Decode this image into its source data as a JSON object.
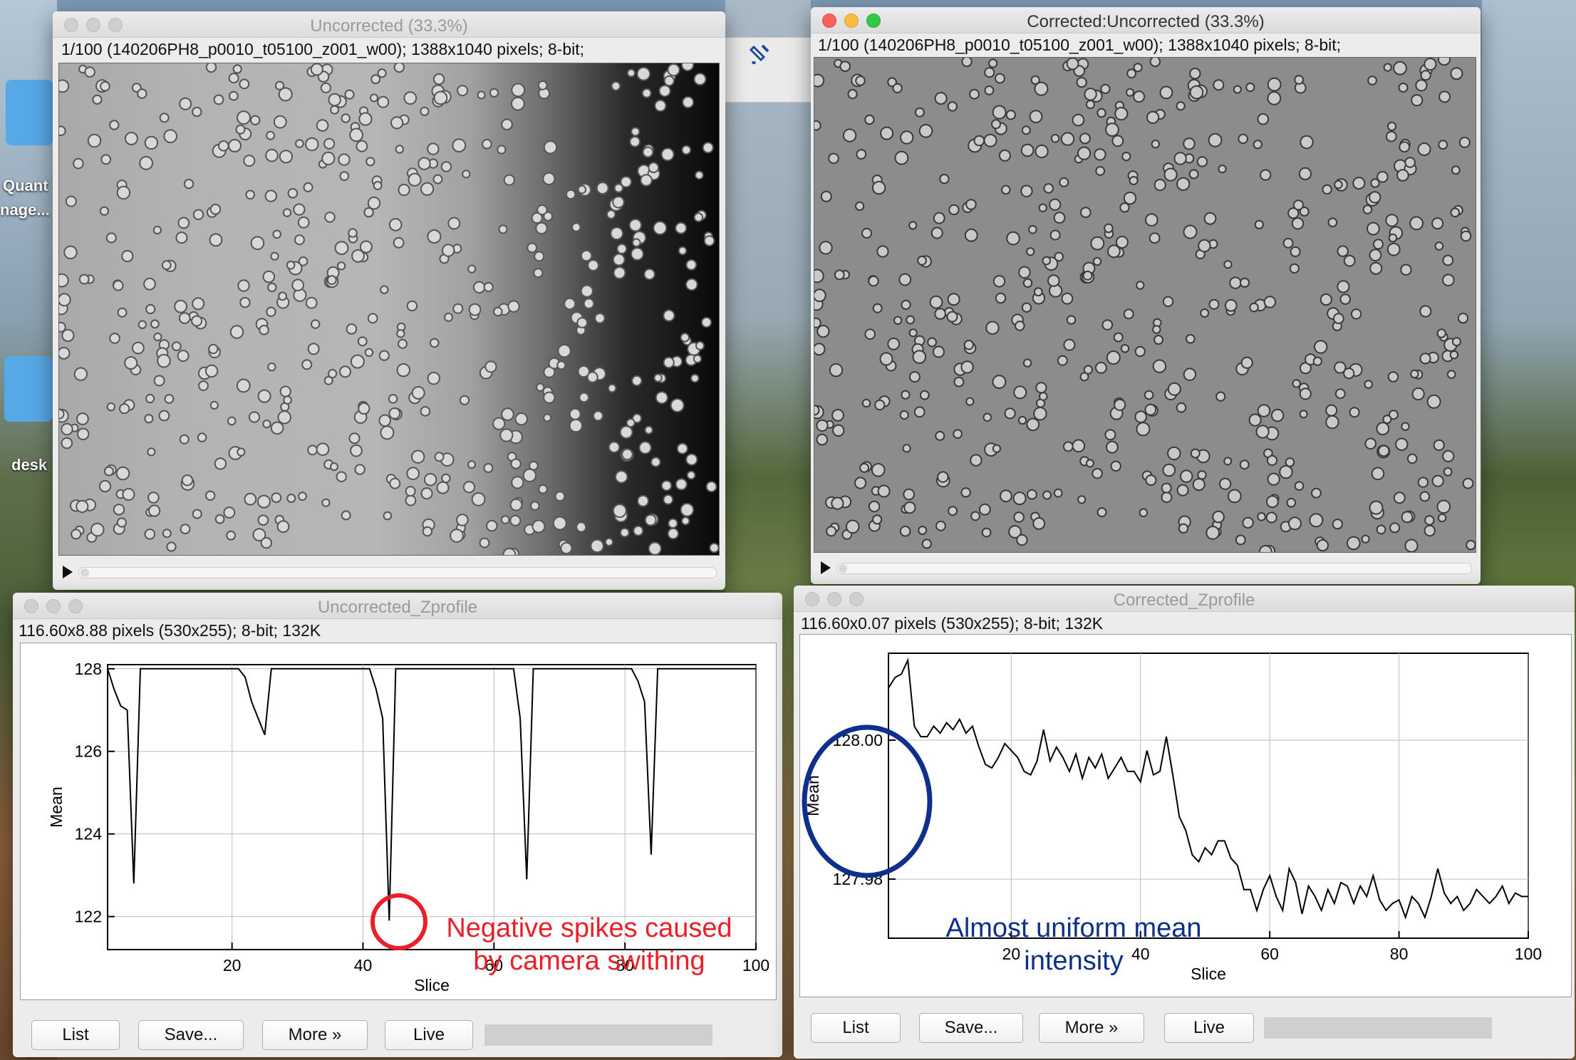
{
  "desktop": {
    "labels": [
      "Quant",
      "nage...",
      "desk"
    ]
  },
  "windows": {
    "uncorrected_image": {
      "title": "Uncorrected (33.3%)",
      "info": "1/100 (140206PH8_p0010_t05100_z001_w00); 1388x1040 pixels; 8-bit;"
    },
    "corrected_image": {
      "title": "Corrected:Uncorrected (33.3%)",
      "info": "1/100 (140206PH8_p0010_t05100_z001_w00); 1388x1040 pixels; 8-bit;"
    },
    "uncorrected_profile": {
      "title": "Uncorrected_Zprofile",
      "info": "116.60x8.88 pixels (530x255); 8-bit; 132K",
      "annotation": [
        "Negative spikes caused",
        "by camera swithing"
      ],
      "buttons": [
        "List",
        "Save...",
        "More »",
        "Live"
      ]
    },
    "corrected_profile": {
      "title": "Corrected_Zprofile",
      "info": "116.60x0.07 pixels (530x255); 8-bit; 132K",
      "annotation": [
        "Almost uniform mean",
        "intensity"
      ],
      "buttons": [
        "List",
        "Save...",
        "More »",
        "Live"
      ]
    }
  },
  "chart_data": [
    {
      "type": "line",
      "xlabel": "Slice",
      "ylabel": "Mean",
      "xlim": [
        1,
        100
      ],
      "ylim": [
        121.2,
        128.1
      ],
      "xticks": [
        20,
        40,
        60,
        80,
        100
      ],
      "yticks": [
        122,
        124,
        126,
        128
      ],
      "ytick_labels": [
        "122",
        "124",
        "126",
        "128"
      ],
      "grid": true,
      "x": [
        1,
        2,
        3,
        4,
        5,
        6,
        7,
        8,
        9,
        10,
        11,
        12,
        13,
        14,
        15,
        16,
        17,
        18,
        19,
        20,
        21,
        22,
        23,
        24,
        25,
        26,
        27,
        28,
        29,
        30,
        31,
        32,
        33,
        34,
        35,
        36,
        37,
        38,
        39,
        40,
        41,
        42,
        43,
        44,
        45,
        46,
        47,
        48,
        49,
        50,
        51,
        52,
        53,
        54,
        55,
        56,
        57,
        58,
        59,
        60,
        61,
        62,
        63,
        64,
        65,
        66,
        67,
        68,
        69,
        70,
        71,
        72,
        73,
        74,
        75,
        76,
        77,
        78,
        79,
        80,
        81,
        82,
        83,
        84,
        85,
        86,
        87,
        88,
        89,
        90,
        91,
        92,
        93,
        94,
        95,
        96,
        97,
        98,
        99,
        100
      ],
      "values": [
        128,
        127.5,
        127.1,
        127,
        122.8,
        128,
        128,
        128,
        128,
        128,
        128,
        128,
        128,
        128,
        128,
        128,
        128,
        128,
        128,
        128,
        128,
        127.8,
        127.2,
        126.8,
        126.4,
        128,
        128,
        128,
        128,
        128,
        128,
        128,
        128,
        128,
        128,
        128,
        128,
        128,
        128,
        128,
        128,
        127.5,
        126.8,
        121.9,
        128,
        128,
        128,
        128,
        128,
        128,
        128,
        128,
        128,
        128,
        128,
        128,
        128,
        128,
        128,
        128,
        128,
        128,
        128,
        126.8,
        122.9,
        128,
        128,
        128,
        128,
        128,
        128,
        128,
        128,
        128,
        128,
        128,
        128,
        128,
        128,
        128,
        128,
        127.7,
        127.2,
        123.5,
        128,
        128,
        128,
        128,
        128,
        128,
        128,
        128,
        128,
        128,
        128,
        128,
        128,
        128,
        128,
        128
      ]
    },
    {
      "type": "line",
      "xlabel": "Slice",
      "ylabel": "Mean",
      "xlim": [
        1,
        100
      ],
      "ylim": [
        127.9715,
        128.0125
      ],
      "xticks": [
        20,
        40,
        60,
        80,
        100
      ],
      "yticks": [
        127.98,
        128.0
      ],
      "ytick_labels": [
        "127.98",
        "128.00"
      ],
      "grid": true,
      "x": [
        1,
        2,
        3,
        4,
        5,
        6,
        7,
        8,
        9,
        10,
        11,
        12,
        13,
        14,
        15,
        16,
        17,
        18,
        19,
        20,
        21,
        22,
        23,
        24,
        25,
        26,
        27,
        28,
        29,
        30,
        31,
        32,
        33,
        34,
        35,
        36,
        37,
        38,
        39,
        40,
        41,
        42,
        43,
        44,
        45,
        46,
        47,
        48,
        49,
        50,
        51,
        52,
        53,
        54,
        55,
        56,
        57,
        58,
        59,
        60,
        61,
        62,
        63,
        64,
        65,
        66,
        67,
        68,
        69,
        70,
        71,
        72,
        73,
        74,
        75,
        76,
        77,
        78,
        79,
        80,
        81,
        82,
        83,
        84,
        85,
        86,
        87,
        88,
        89,
        90,
        91,
        92,
        93,
        94,
        95,
        96,
        97,
        98,
        99,
        100
      ],
      "values": [
        128.0075,
        128.009,
        128.0095,
        128.0115,
        128.002,
        128.0005,
        128.0005,
        128.002,
        128.001,
        128.0025,
        128.0015,
        128.003,
        128.001,
        128.002,
        127.999,
        127.9965,
        127.996,
        127.9975,
        127.9995,
        127.9985,
        127.9975,
        127.9955,
        127.995,
        127.997,
        128.0015,
        127.997,
        127.999,
        127.9975,
        127.9955,
        127.998,
        127.9945,
        127.9975,
        127.996,
        127.998,
        127.9945,
        127.996,
        127.9975,
        127.9955,
        127.9955,
        127.994,
        127.9985,
        127.995,
        127.9955,
        128.0005,
        127.995,
        127.989,
        127.987,
        127.9835,
        127.9825,
        127.9845,
        127.9835,
        127.9855,
        127.9855,
        127.983,
        127.982,
        127.9785,
        127.9785,
        127.9755,
        127.9785,
        127.9805,
        127.9775,
        127.9755,
        127.9815,
        127.9795,
        127.975,
        127.979,
        127.9775,
        127.9755,
        127.9785,
        127.9765,
        127.9795,
        127.979,
        127.9765,
        127.979,
        127.9775,
        127.9805,
        127.977,
        127.9755,
        127.9765,
        127.977,
        127.9745,
        127.9775,
        127.9765,
        127.9745,
        127.9775,
        127.9815,
        127.978,
        127.9765,
        127.9775,
        127.9755,
        127.9765,
        127.9785,
        127.9775,
        127.9765,
        127.9775,
        127.979,
        127.9765,
        127.978,
        127.9775,
        127.9775
      ]
    }
  ]
}
